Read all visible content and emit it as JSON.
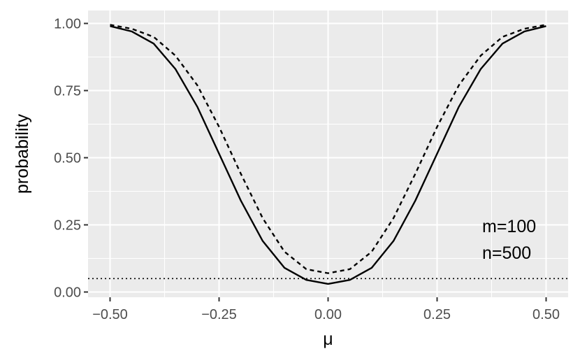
{
  "chart_data": {
    "type": "line",
    "title": "",
    "xlabel": "μ",
    "ylabel": "probability",
    "xlim": [
      -0.5,
      0.5
    ],
    "ylim": [
      0,
      1
    ],
    "grid": true,
    "x_ticks": [
      "−0.50",
      "−0.25",
      "0.00",
      "0.25",
      "0.50"
    ],
    "y_ticks": [
      "0.00",
      "0.25",
      "0.50",
      "0.75",
      "1.00"
    ],
    "x_tick_values": [
      -0.5,
      -0.25,
      0,
      0.25,
      0.5
    ],
    "y_tick_values": [
      0,
      0.25,
      0.5,
      0.75,
      1
    ],
    "reference_line": {
      "y": 0.05,
      "style": "dotted"
    },
    "annotations": [
      "m=100",
      "n=500"
    ],
    "x": [
      -0.5,
      -0.45,
      -0.4,
      -0.35,
      -0.3,
      -0.25,
      -0.2,
      -0.15,
      -0.1,
      -0.05,
      0,
      0.05,
      0.1,
      0.15,
      0.2,
      0.25,
      0.3,
      0.35,
      0.4,
      0.45,
      0.5
    ],
    "series": [
      {
        "style": "solid",
        "values": [
          0.99,
          0.97,
          0.925,
          0.83,
          0.69,
          0.515,
          0.34,
          0.19,
          0.09,
          0.045,
          0.03,
          0.045,
          0.09,
          0.19,
          0.34,
          0.515,
          0.69,
          0.83,
          0.925,
          0.97,
          0.99
        ]
      },
      {
        "style": "dashed",
        "values": [
          0.995,
          0.98,
          0.95,
          0.88,
          0.77,
          0.615,
          0.44,
          0.275,
          0.15,
          0.085,
          0.07,
          0.085,
          0.15,
          0.275,
          0.44,
          0.615,
          0.77,
          0.88,
          0.95,
          0.98,
          0.995
        ]
      }
    ]
  }
}
